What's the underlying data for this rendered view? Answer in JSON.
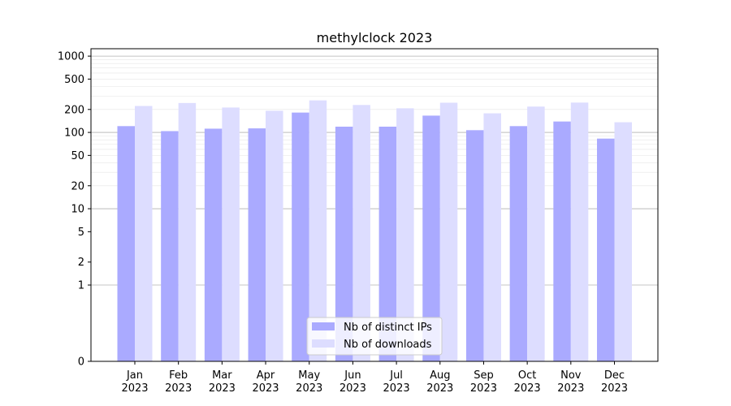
{
  "chart_data": {
    "type": "bar",
    "title": "methylclock 2023",
    "xlabel": "",
    "ylabel": "",
    "y_scale": "symlog",
    "ylim": [
      0,
      1250
    ],
    "y_ticks": [
      0,
      1,
      2,
      5,
      10,
      20,
      50,
      100,
      200,
      500,
      1000
    ],
    "y_tick_labels": [
      "0",
      "1",
      "2",
      "5",
      "10",
      "20",
      "50",
      "100",
      "200",
      "500",
      "1000"
    ],
    "grid": true,
    "legend_position": "bottom-center",
    "categories": [
      "Jan\n2023",
      "Feb\n2023",
      "Mar\n2023",
      "Apr\n2023",
      "May\n2023",
      "Jun\n2023",
      "Jul\n2023",
      "Aug\n2023",
      "Sep\n2023",
      "Oct\n2023",
      "Nov\n2023",
      "Dec\n2023"
    ],
    "series": [
      {
        "name": "Nb of distinct IPs",
        "color": "#aaaaff",
        "values": [
          121,
          104,
          112,
          113,
          182,
          119,
          119,
          166,
          107,
          121,
          139,
          83
        ]
      },
      {
        "name": "Nb of downloads",
        "color": "#ddddff",
        "values": [
          222,
          243,
          212,
          192,
          263,
          229,
          207,
          245,
          178,
          218,
          246,
          136
        ]
      }
    ]
  }
}
